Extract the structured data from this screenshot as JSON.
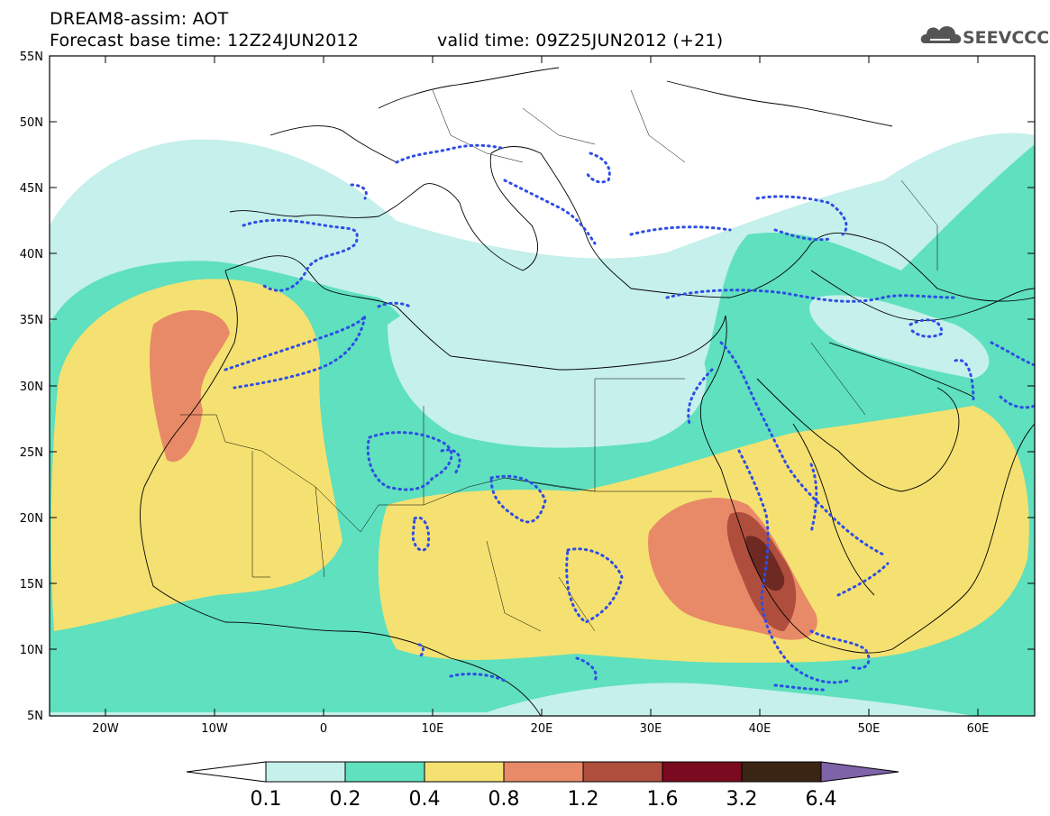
{
  "header": {
    "line1": "DREAM8-assim: AOT",
    "line2": "Forecast base time: 12Z24JUN2012",
    "line3": "valid time: 09Z25JUN2012 (+21)"
  },
  "logo": {
    "text": "SEEVCCC",
    "icon": "cloud-icon"
  },
  "map": {
    "lat_ticks": [
      "55N",
      "50N",
      "45N",
      "40N",
      "35N",
      "30N",
      "25N",
      "20N",
      "15N",
      "10N",
      "5N"
    ],
    "lon_ticks": [
      "20W",
      "10W",
      "0",
      "10E",
      "20E",
      "30E",
      "40E",
      "50E",
      "60E"
    ]
  },
  "colorbar": {
    "colors": [
      "#ffffff",
      "#c5f0ec",
      "#5fe0be",
      "#f5e171",
      "#e88a67",
      "#b04e3e",
      "#7a0a20",
      "#3a2515",
      "#7f63a9"
    ],
    "labels": [
      "0.1",
      "0.2",
      "0.4",
      "0.8",
      "1.2",
      "1.6",
      "3.2",
      "6.4"
    ]
  },
  "contour_color": "#2e4de6"
}
